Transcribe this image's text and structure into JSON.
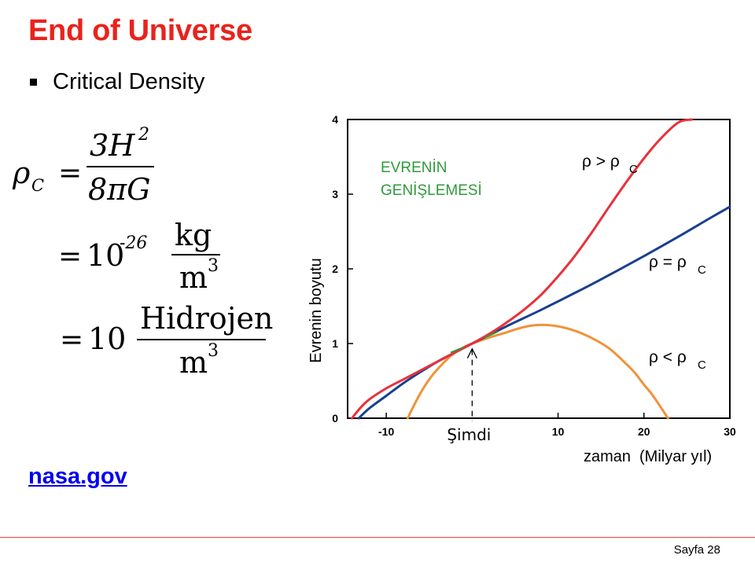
{
  "title": "End of Universe",
  "bullet": "Critical Density",
  "formula": {
    "rho": "ρ",
    "rho_sub": "C",
    "eq": "=",
    "num1": "3H",
    "num1_exp": "2",
    "den1": "8πG",
    "ten": "10",
    "exp2": "-26",
    "unit2_num": "kg",
    "unit2_den": "m",
    "unit_den_exp": "3",
    "unit3_num": "Hidrojen",
    "unit3_den": "m"
  },
  "link": "nasa.gov",
  "page_label": "Sayfa 28",
  "colors": {
    "title": "#e8231c",
    "red_curve": "#e8313a",
    "blue_curve": "#1a3f8f",
    "orange_curve": "#f0923a",
    "green_curve": "#2e9a3c",
    "green_text": "#2e9a3c"
  },
  "chart_data": {
    "type": "line",
    "ylabel": "Evrenin boyutu",
    "xlabel_main": "zaman",
    "xlabel_unit": "(Milyar yıl)",
    "xlim": [
      -14.5,
      30
    ],
    "ylim": [
      0,
      4
    ],
    "x_ticks": [
      "-10",
      "10",
      "20",
      "30"
    ],
    "x_tick_values": [
      -10,
      10,
      20,
      30
    ],
    "y_ticks": [
      "0",
      "1",
      "2",
      "3",
      "4"
    ],
    "y_tick_values": [
      0,
      1,
      2,
      3,
      4
    ],
    "annotation_title": [
      "EVRENİN",
      "GENİŞLEMESİ"
    ],
    "now_label": "Şimdi",
    "now_x": 0,
    "series": [
      {
        "label_main": "ρ > ρ",
        "label_sub": "C",
        "color": "#e8313a",
        "x": [
          -14,
          -13,
          -12,
          -10,
          -8,
          -6,
          -4,
          -2,
          0,
          2,
          4,
          6,
          8,
          10,
          12,
          14,
          16,
          18,
          20,
          22,
          24,
          25.6
        ],
        "y": [
          0,
          0.14,
          0.25,
          0.4,
          0.52,
          0.64,
          0.76,
          0.88,
          1.0,
          1.13,
          1.28,
          1.45,
          1.65,
          1.9,
          2.18,
          2.5,
          2.84,
          3.17,
          3.48,
          3.75,
          3.96,
          4.0
        ]
      },
      {
        "label_main": "ρ = ρ",
        "label_sub": "C",
        "color": "#1a3f8f",
        "x": [
          -13.2,
          -12,
          -10,
          -8,
          -6,
          -4,
          -2,
          0,
          4,
          8,
          12,
          16,
          20,
          24,
          28,
          30
        ],
        "y": [
          0,
          0.13,
          0.3,
          0.47,
          0.62,
          0.76,
          0.88,
          1.0,
          1.23,
          1.45,
          1.68,
          1.92,
          2.17,
          2.43,
          2.7,
          2.83
        ]
      },
      {
        "label_main": "ρ < ρ",
        "label_sub": "C",
        "color": "#f0923a",
        "x": [
          -7.5,
          -7,
          -6,
          -5,
          -4,
          -3,
          -2,
          -1,
          0,
          2,
          4,
          6,
          8,
          10,
          12,
          14,
          16,
          18,
          19,
          20,
          21,
          22,
          22.8
        ],
        "y": [
          0,
          0.12,
          0.34,
          0.52,
          0.66,
          0.78,
          0.88,
          0.95,
          1.0,
          1.08,
          1.15,
          1.22,
          1.25,
          1.23,
          1.17,
          1.07,
          0.93,
          0.72,
          0.6,
          0.45,
          0.31,
          0.14,
          0
        ]
      }
    ]
  }
}
